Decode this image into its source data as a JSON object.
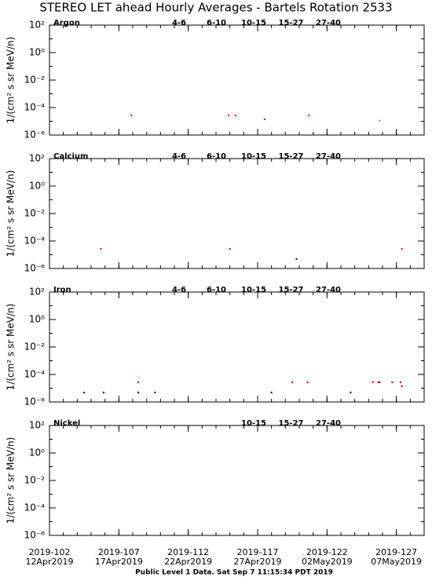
{
  "title": "STEREO LET ahead Hourly Averages - Bartels Rotation 2533",
  "footer": "Public Level 1 Data. Sat Sep  7 11:15:34 PDT 2019",
  "x_axis": {
    "xlim": [
      102,
      129
    ],
    "xticks": [
      {
        "value": 102,
        "label": "2019-102"
      },
      {
        "value": 107,
        "label": "2019-107"
      },
      {
        "value": 112,
        "label": "2019-112"
      },
      {
        "value": 117,
        "label": "2019-117"
      },
      {
        "value": 122,
        "label": "2019-122"
      },
      {
        "value": 127,
        "label": "2019-127"
      }
    ],
    "xtick_sublabels": [
      "12Apr2019",
      "17Apr2019",
      "22Apr2019",
      "27Apr2019",
      "02May2019",
      "07May2019"
    ]
  },
  "chart_data": [
    {
      "type": "scatter",
      "label": "Argon",
      "ylabel": "1/(cm² s sr MeV/n)",
      "log_y": true,
      "ylim": [
        1e-06,
        100
      ],
      "yticks": [
        {
          "value": 100,
          "label": "10²"
        },
        {
          "value": 1,
          "label": "10⁰"
        },
        {
          "value": 0.01,
          "label": "10⁻²"
        },
        {
          "value": 0.0001,
          "label": "10⁻⁴"
        },
        {
          "value": 1e-06,
          "label": "10⁻⁶"
        }
      ],
      "series": [
        {
          "name": "4-6",
          "color": "#b00000",
          "x": [
            117.5
          ],
          "y": [
            1.4e-05
          ]
        },
        {
          "name": "6-10",
          "color": "#ff0000",
          "x": [
            107.9,
            114.9,
            115.4,
            120.7
          ],
          "y": [
            2.7e-05,
            2.7e-05,
            2.7e-05,
            2.7e-05
          ]
        },
        {
          "name": "10-15",
          "color": "#888888",
          "x": [
            125.8
          ],
          "y": [
            1.1e-05
          ]
        },
        {
          "name": "15-27",
          "color": "#0000ff",
          "x": [],
          "y": []
        },
        {
          "name": "27-40",
          "color": "#000000",
          "x": [],
          "y": []
        }
      ]
    },
    {
      "type": "scatter",
      "label": "Calcium",
      "ylabel": "1/(cm² s sr MeV/n)",
      "log_y": true,
      "ylim": [
        1e-06,
        100
      ],
      "yticks": [
        {
          "value": 100,
          "label": "10²"
        },
        {
          "value": 1,
          "label": "10⁰"
        },
        {
          "value": 0.01,
          "label": "10⁻²"
        },
        {
          "value": 0.0001,
          "label": "10⁻⁴"
        },
        {
          "value": 1e-06,
          "label": "10⁻⁶"
        }
      ],
      "series": [
        {
          "name": "4-6",
          "color": "#b00000",
          "x": [],
          "y": []
        },
        {
          "name": "6-10",
          "color": "#ff0000",
          "x": [
            105.7,
            115.0,
            127.4
          ],
          "y": [
            2.7e-05,
            2.7e-05,
            2.7e-05
          ]
        },
        {
          "name": "10-15",
          "color": "#888888",
          "x": [],
          "y": []
        },
        {
          "name": "15-27",
          "color": "#0000ff",
          "x": [],
          "y": []
        },
        {
          "name": "27-40",
          "color": "#000000",
          "x": [
            119.8
          ],
          "y": [
            4.9e-06
          ]
        }
      ]
    },
    {
      "type": "scatter",
      "label": "Iron",
      "ylabel": "1/(cm² s sr MeV/n)",
      "log_y": true,
      "ylim": [
        1e-06,
        100
      ],
      "yticks": [
        {
          "value": 100,
          "label": "10²"
        },
        {
          "value": 1,
          "label": "10⁰"
        },
        {
          "value": 0.01,
          "label": "10⁻²"
        },
        {
          "value": 0.0001,
          "label": "10⁻⁴"
        },
        {
          "value": 1e-06,
          "label": "10⁻⁶"
        }
      ],
      "series": [
        {
          "name": "4-6",
          "color": "#b00000",
          "x": [
            108.4,
            119.5,
            120.6,
            125.3,
            125.7,
            125.8,
            126.7,
            127.3,
            127.4
          ],
          "y": [
            2.7e-05,
            2.7e-05,
            2.7e-05,
            2.7e-05,
            2.7e-05,
            2.7e-05,
            2.7e-05,
            2.7e-05,
            1.4e-05
          ]
        },
        {
          "name": "6-10",
          "color": "#ff0000",
          "x": [],
          "y": []
        },
        {
          "name": "10-15",
          "color": "#888888",
          "x": [],
          "y": []
        },
        {
          "name": "15-27",
          "color": "#0000ff",
          "x": [],
          "y": []
        },
        {
          "name": "27-40",
          "color": "#000000",
          "x": [
            104.5,
            105.9,
            108.4,
            109.6,
            118.0,
            123.7
          ],
          "y": [
            4.9e-06,
            4.9e-06,
            4.9e-06,
            4.9e-06,
            4.9e-06,
            4.9e-06
          ]
        }
      ]
    },
    {
      "type": "scatter",
      "label": "Nickel",
      "ylabel": "1/(cm² s sr MeV/n)",
      "log_y": true,
      "ylim": [
        1e-06,
        100
      ],
      "yticks": [
        {
          "value": 100,
          "label": "10²"
        },
        {
          "value": 1,
          "label": "10⁰"
        },
        {
          "value": 0.01,
          "label": "10⁻²"
        },
        {
          "value": 0.0001,
          "label": "10⁻⁴"
        },
        {
          "value": 1e-06,
          "label": "10⁻⁶"
        }
      ],
      "series": [
        {
          "name": "10-15",
          "color": "#888888",
          "x": [],
          "y": []
        },
        {
          "name": "15-27",
          "color": "#0000ff",
          "x": [],
          "y": []
        },
        {
          "name": "27-40",
          "color": "#000000",
          "x": [],
          "y": []
        }
      ]
    }
  ]
}
